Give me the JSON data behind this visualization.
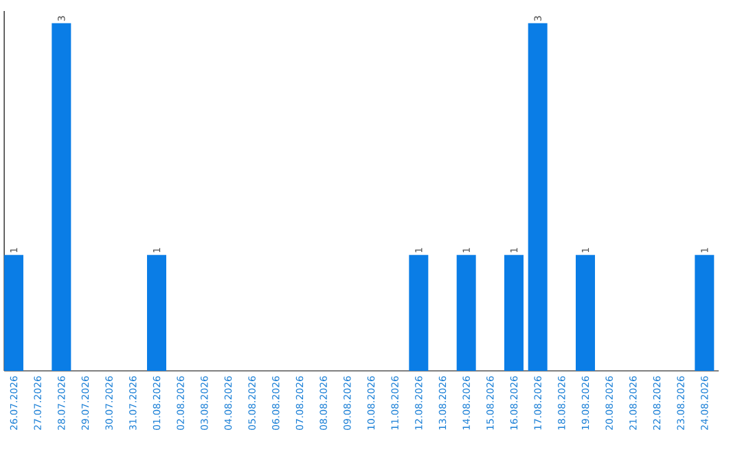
{
  "chart_data": {
    "type": "bar",
    "categories": [
      "26.07.2026",
      "27.07.2026",
      "28.07.2026",
      "29.07.2026",
      "30.07.2026",
      "31.07.2026",
      "01.08.2026",
      "02.08.2026",
      "03.08.2026",
      "04.08.2026",
      "05.08.2026",
      "06.08.2026",
      "07.08.2026",
      "08.08.2026",
      "09.08.2026",
      "10.08.2026",
      "11.08.2026",
      "12.08.2026",
      "13.08.2026",
      "14.08.2026",
      "15.08.2026",
      "16.08.2026",
      "17.08.2026",
      "18.08.2026",
      "19.08.2026",
      "20.08.2026",
      "21.08.2026",
      "22.08.2026",
      "23.08.2026",
      "24.08.2026"
    ],
    "values": [
      1,
      0,
      3,
      0,
      0,
      0,
      1,
      0,
      0,
      0,
      0,
      0,
      0,
      0,
      0,
      0,
      0,
      1,
      0,
      1,
      0,
      1,
      3,
      0,
      1,
      0,
      0,
      0,
      0,
      1
    ],
    "value_labels": [
      "1",
      null,
      "3",
      null,
      null,
      null,
      "1",
      null,
      null,
      null,
      null,
      null,
      null,
      null,
      null,
      null,
      null,
      "1",
      null,
      "1",
      null,
      "1",
      "3",
      null,
      "1",
      null,
      null,
      null,
      null,
      "1"
    ],
    "color": "#0a7de6",
    "tick_labels": "x"
  }
}
